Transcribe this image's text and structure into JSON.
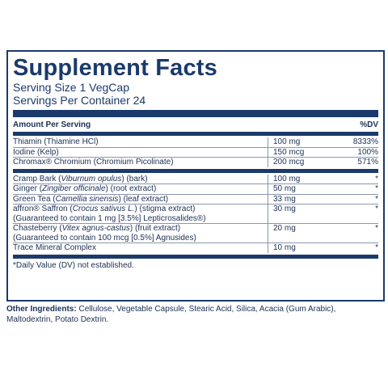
{
  "label": {
    "title": "Supplement Facts",
    "serving_size": "Serving Size 1 VegCap",
    "servings_per_container": "Servings Per Container 24",
    "header": {
      "amount": "Amount Per Serving",
      "dv": "%DV"
    },
    "groups": [
      [
        {
          "name": [
            {
              "text": "Thiamin (Thiamine HCl)",
              "italic": false
            }
          ],
          "amount": "100 mg",
          "dv": "8333%"
        },
        {
          "name": [
            {
              "text": "Iodine (Kelp)",
              "italic": false
            }
          ],
          "amount": "150 mcg",
          "dv": "100%"
        },
        {
          "name": [
            {
              "text": "Chromax® Chromium (Chromium Picolinate)",
              "italic": false
            }
          ],
          "amount": "200 mcg",
          "dv": "571%"
        }
      ],
      [
        {
          "name": [
            {
              "text": "Cramp Bark (",
              "italic": false
            },
            {
              "text": "Viburnum opulus",
              "italic": true
            },
            {
              "text": ") (bark)",
              "italic": false
            }
          ],
          "amount": "100 mg",
          "dv": "*"
        },
        {
          "name": [
            {
              "text": "Ginger (",
              "italic": false
            },
            {
              "text": "Zingiber officinale",
              "italic": true
            },
            {
              "text": ") (root extract)",
              "italic": false
            }
          ],
          "amount": "50 mg",
          "dv": "*"
        },
        {
          "name": [
            {
              "text": "Green Tea (",
              "italic": false
            },
            {
              "text": "Camellia sinensis",
              "italic": true
            },
            {
              "text": ") (leaf extract)",
              "italic": false
            }
          ],
          "amount": "33 mg",
          "dv": "*"
        },
        {
          "name": [
            {
              "text": "affron® Saffron (",
              "italic": false
            },
            {
              "text": "Crocus sativus L.",
              "italic": true
            },
            {
              "text": ") (stigma extract)",
              "italic": false
            }
          ],
          "note": "(Guaranteed to contain 1 mg [3.5%] Lepticrosalides®)",
          "amount": "30 mg",
          "dv": "*"
        },
        {
          "name": [
            {
              "text": "Chasteberry (",
              "italic": false
            },
            {
              "text": "Vitex agnus-castus",
              "italic": true
            },
            {
              "text": ") (fruit extract)",
              "italic": false
            }
          ],
          "note": "(Guaranteed to contain 100 mcg [0.5%] Agnusides)",
          "amount": "20 mg",
          "dv": "*"
        },
        {
          "name": [
            {
              "text": "Trace Mineral Complex",
              "italic": false
            }
          ],
          "amount": "10 mg",
          "dv": "*"
        }
      ]
    ],
    "footnote": "*Daily Value (DV) not established.",
    "other_ingredients": {
      "label": "Other Ingredients:",
      "text": "Cellulose, Vegetable Capsule, Stearic Acid, Silica, Acacia (Gum Arabic), Maltodextrin, Potato Dextrin."
    }
  }
}
